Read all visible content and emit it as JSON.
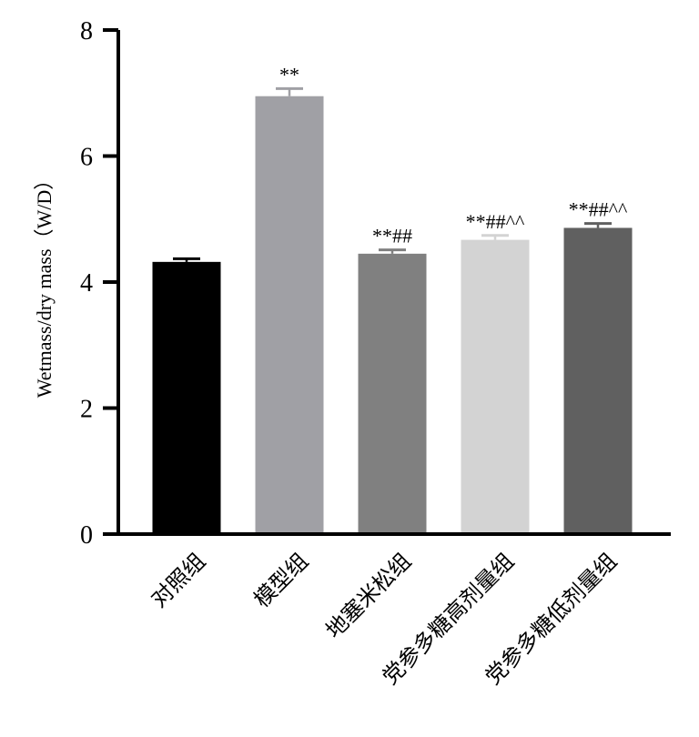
{
  "chart_data": {
    "type": "bar",
    "title": "",
    "xlabel": "",
    "ylabel": "Wetmass/dry mass（W/D）",
    "ylim": [
      0,
      8
    ],
    "yticks": [
      0,
      2,
      4,
      6,
      8
    ],
    "grid": false,
    "categories": [
      "对照组",
      "模型组",
      "地塞米松组",
      "党参多糖高剂量组",
      "党参多糖低剂量组"
    ],
    "values": [
      4.32,
      6.95,
      4.45,
      4.67,
      4.86
    ],
    "errors": [
      0.05,
      0.12,
      0.06,
      0.07,
      0.07
    ],
    "annotations": [
      "",
      "**",
      "**##",
      "**##^^",
      "**##^^"
    ],
    "colors": [
      "#000000",
      "#a0a0a5",
      "#808080",
      "#d3d3d3",
      "#606060"
    ]
  }
}
